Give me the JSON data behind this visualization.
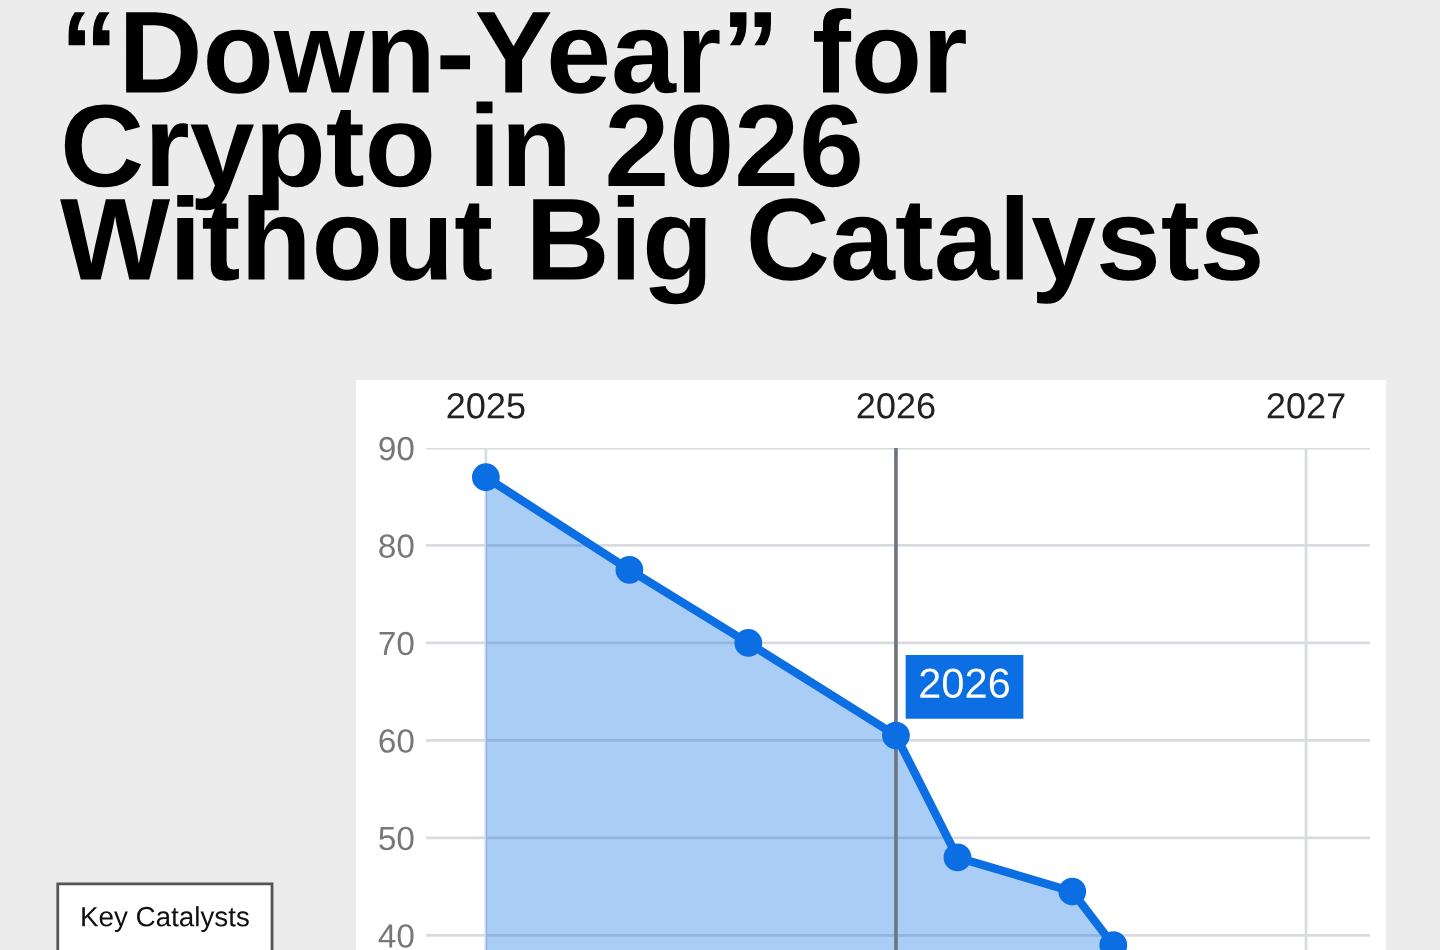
{
  "chart_data": {
    "type": "area",
    "title": "“Down-Year” for\nCrypto in 2026\nWithout Big Catalysts",
    "x": [
      2025.0,
      2025.35,
      2025.64,
      2026.0,
      2026.15,
      2026.43,
      2026.53
    ],
    "series": [
      {
        "color": "#0b6fe3",
        "values": [
          87,
          77.5,
          70,
          60.5,
          48,
          44.5,
          39
        ]
      }
    ],
    "xlim": [
      2024.854,
      2027.156
    ],
    "xticks": [
      2025,
      2026,
      2027
    ],
    "ylim": [
      38.5,
      90
    ],
    "yticks": [
      40,
      50,
      60,
      70,
      80,
      90
    ],
    "grid": true,
    "marker": "circle",
    "line_style": "solid",
    "ref_lines": [
      {
        "axis": "x",
        "value": 2026,
        "label": "2026",
        "color": "#6e7480"
      }
    ],
    "annotations": [
      "Key Catalysts"
    ]
  }
}
